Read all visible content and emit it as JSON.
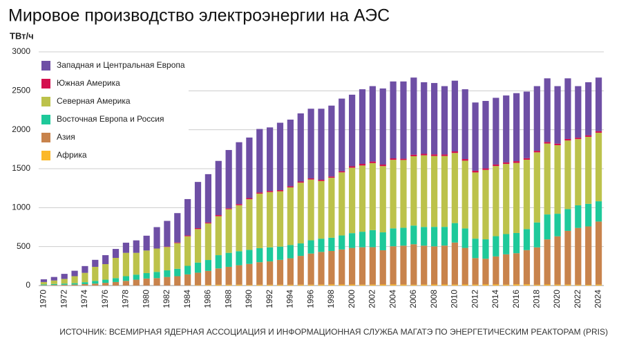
{
  "chart_data": {
    "type": "stacked_bar",
    "title": "Мировое производство электроэнергии на АЭС",
    "y_label": "ТВт/ч",
    "source": "ИСТОЧНИК: ВСЕМИРНАЯ ЯДЕРНАЯ АССОЦИАЦИЯ И ИНФОРМАЦИОННАЯ СЛУЖБА МАГАТЭ ПО ЭНЕРГЕТИЧЕСКИМ РЕАКТОРАМ (PRIS)",
    "categories": [
      "1970",
      null,
      "1972",
      null,
      "1974",
      null,
      "1976",
      null,
      "1978",
      null,
      "1980",
      null,
      "1982",
      null,
      "1984",
      null,
      "1986",
      null,
      "1988",
      null,
      "1990",
      null,
      "1992",
      null,
      "1994",
      null,
      "1996",
      null,
      "1998",
      null,
      "2000",
      null,
      "2002",
      null,
      "2004",
      null,
      "2006",
      null,
      "2008",
      null,
      "2010",
      null,
      "2012",
      null,
      "2014",
      null,
      "2016",
      null,
      "2018",
      null,
      "2020",
      null,
      "2022",
      null,
      "2024"
    ],
    "series": [
      {
        "name": "Африка",
        "color": "#fbb829",
        "values": [
          0,
          0,
          0,
          0,
          0,
          0,
          0,
          0,
          0,
          0,
          0,
          0,
          0,
          0,
          3,
          5,
          8,
          10,
          10,
          11,
          8,
          10,
          10,
          10,
          10,
          11,
          11,
          12,
          14,
          13,
          13,
          11,
          12,
          13,
          14,
          12,
          10,
          12,
          13,
          13,
          12,
          13,
          12,
          14,
          14,
          11,
          15,
          15,
          10,
          13,
          12,
          12,
          10,
          9,
          12
        ]
      },
      {
        "name": "Азия",
        "color": "#c8834c",
        "values": [
          5,
          8,
          10,
          12,
          18,
          25,
          35,
          45,
          60,
          75,
          90,
          95,
          110,
          120,
          140,
          160,
          180,
          210,
          230,
          250,
          270,
          290,
          300,
          320,
          340,
          370,
          400,
          420,
          430,
          450,
          470,
          480,
          480,
          440,
          490,
          500,
          520,
          500,
          490,
          500,
          540,
          470,
          340,
          330,
          360,
          390,
          400,
          440,
          480,
          580,
          620,
          690,
          730,
          750,
          810
        ]
      },
      {
        "name": "Восточная Европа и Россия",
        "color": "#1ec99a",
        "values": [
          10,
          12,
          15,
          18,
          25,
          35,
          40,
          50,
          60,
          65,
          70,
          80,
          85,
          95,
          110,
          130,
          140,
          170,
          180,
          180,
          180,
          180,
          180,
          170,
          170,
          160,
          170,
          170,
          170,
          180,
          190,
          200,
          220,
          230,
          230,
          230,
          240,
          240,
          250,
          240,
          250,
          250,
          250,
          250,
          260,
          260,
          260,
          270,
          320,
          320,
          290,
          280,
          290,
          290,
          260
        ]
      },
      {
        "name": "Северная Америка",
        "color": "#bcc24b",
        "values": [
          30,
          45,
          60,
          90,
          120,
          180,
          200,
          260,
          300,
          280,
          290,
          300,
          300,
          330,
          380,
          430,
          470,
          500,
          560,
          590,
          650,
          700,
          710,
          710,
          740,
          780,
          780,
          740,
          770,
          810,
          840,
          850,
          860,
          850,
          880,
          870,
          890,
          920,
          910,
          910,
          900,
          870,
          850,
          890,
          900,
          900,
          900,
          890,
          900,
          910,
          880,
          880,
          850,
          860,
          880
        ]
      },
      {
        "name": "Южная Америка",
        "color": "#d40f4e",
        "values": [
          0,
          0,
          0,
          0,
          0,
          0,
          0,
          0,
          0,
          0,
          0,
          0,
          5,
          8,
          10,
          12,
          12,
          15,
          12,
          15,
          15,
          15,
          15,
          15,
          15,
          15,
          15,
          16,
          16,
          15,
          18,
          21,
          20,
          20,
          19,
          16,
          20,
          19,
          21,
          20,
          20,
          21,
          22,
          20,
          20,
          20,
          22,
          20,
          20,
          20,
          20,
          20,
          18,
          20,
          20
        ]
      },
      {
        "name": "Западная и Центральная Европа",
        "color": "#6e4fa5",
        "values": [
          35,
          45,
          65,
          70,
          87,
          90,
          115,
          115,
          130,
          160,
          190,
          275,
          330,
          377,
          467,
          593,
          620,
          695,
          748,
          794,
          777,
          815,
          815,
          865,
          855,
          874,
          894,
          912,
          910,
          932,
          919,
          958,
          968,
          977,
          987,
          992,
          990,
          919,
          916,
          877,
          908,
          896,
          876,
          866,
          856,
          859,
          873,
          855,
          830,
          817,
          738,
          778,
          662,
          681,
          688
        ]
      }
    ],
    "ylim": [
      0,
      3000
    ],
    "yticks": [
      0,
      500,
      1000,
      1500,
      2000,
      2500,
      3000
    ],
    "grid": true,
    "legend": "top-left"
  }
}
